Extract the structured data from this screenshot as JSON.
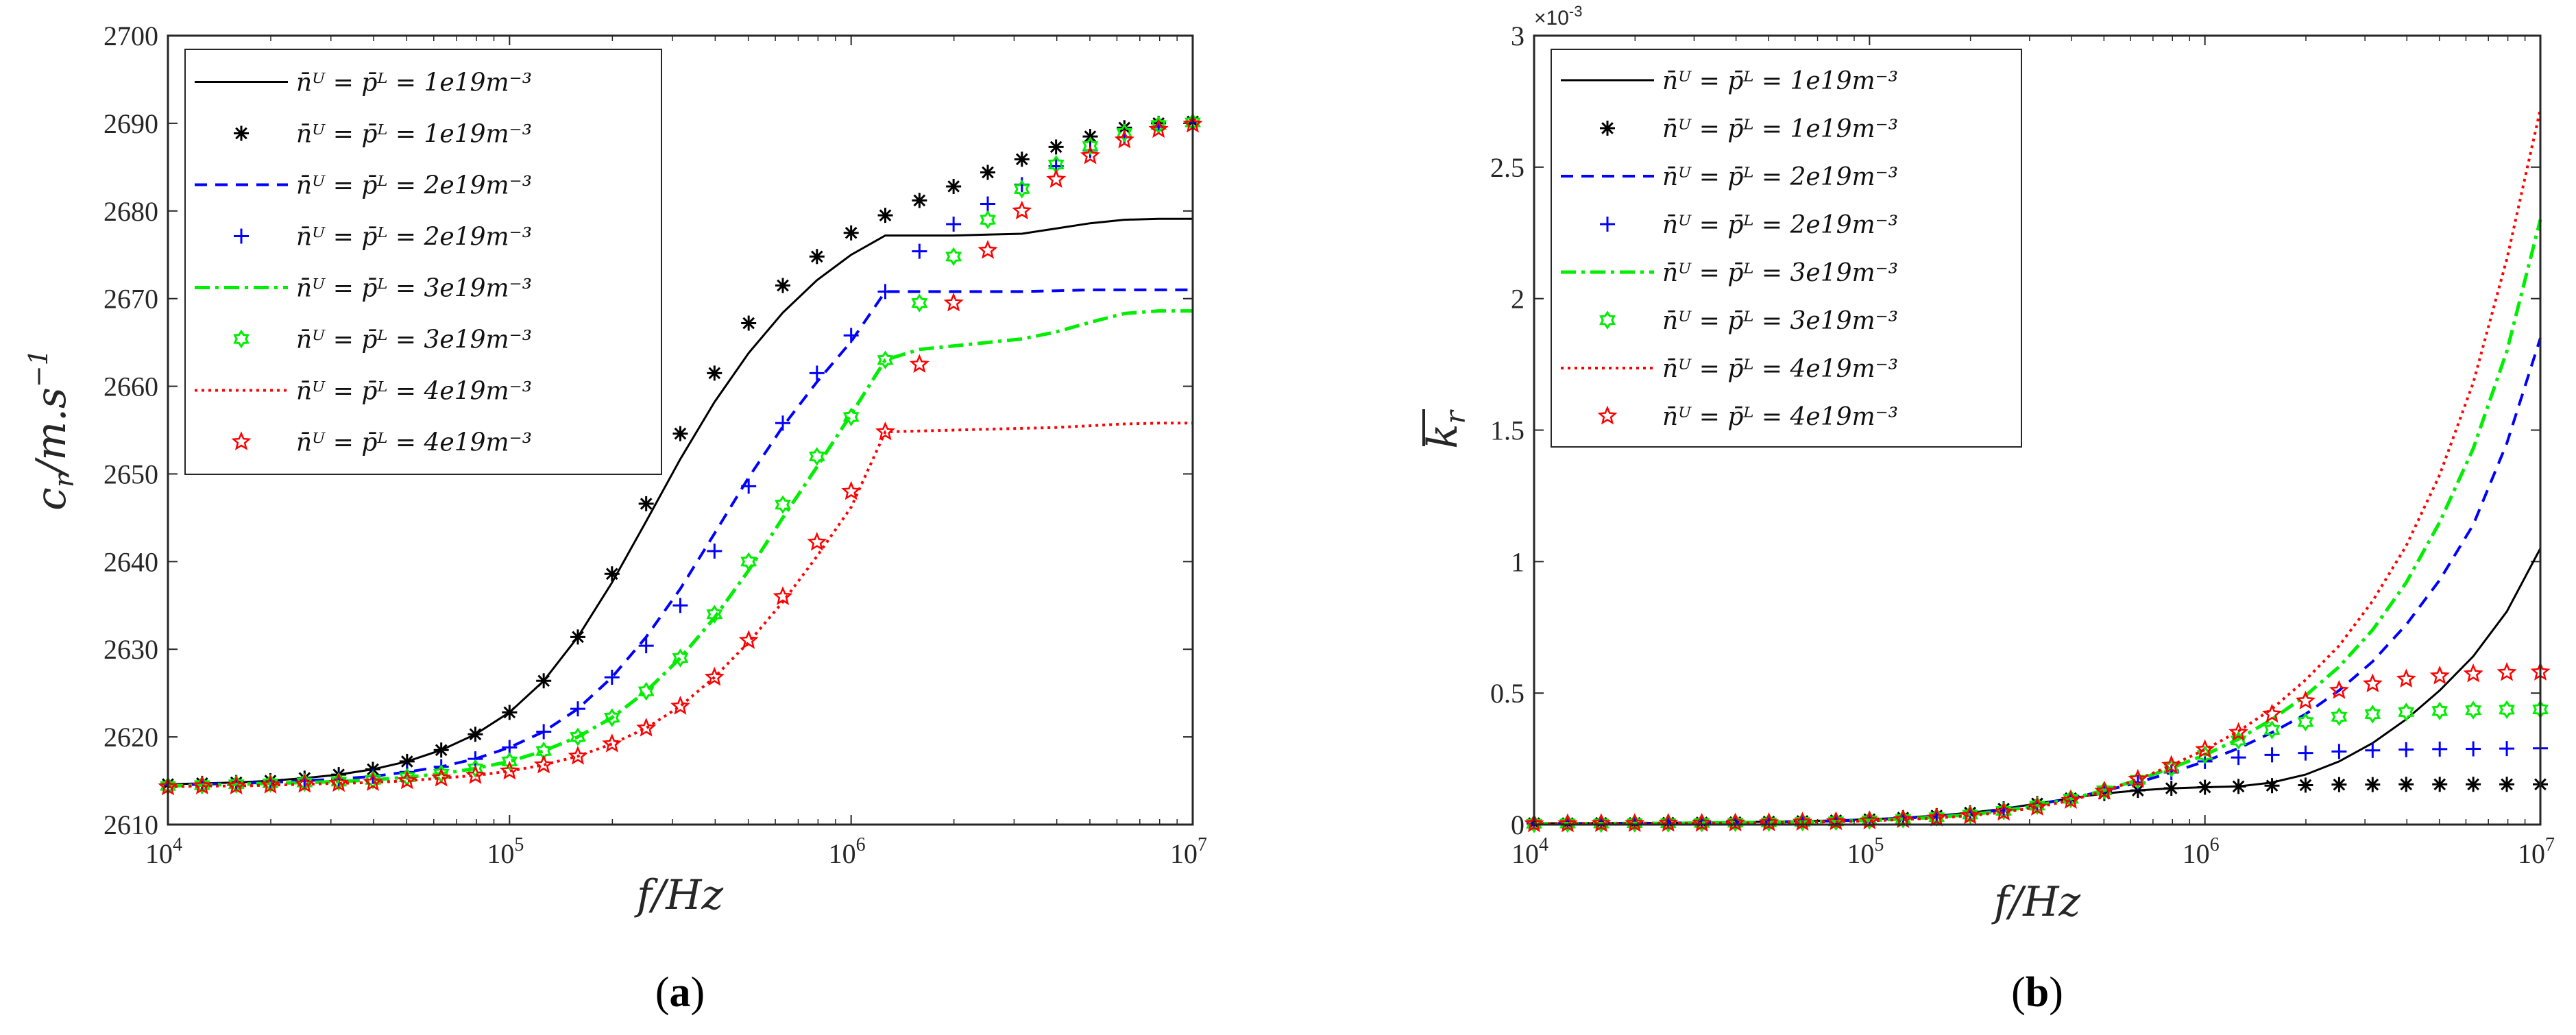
{
  "figure": {
    "panels": [
      "(a)",
      "(b)"
    ]
  },
  "legend_entries": [
    {
      "label": "n̄ᵁ = p̄ᴸ = 1e19m⁻³",
      "kind": "model",
      "series": 0
    },
    {
      "label": "n̄ᵁ = p̄ᴸ = 1e19m⁻³",
      "kind": "marker",
      "series": 0
    },
    {
      "label": "n̄ᵁ = p̄ᴸ = 2e19m⁻³",
      "kind": "model",
      "series": 1
    },
    {
      "label": "n̄ᵁ = p̄ᴸ = 2e19m⁻³",
      "kind": "marker",
      "series": 1
    },
    {
      "label": "n̄ᵁ = p̄ᴸ = 3e19m⁻³",
      "kind": "model",
      "series": 2
    },
    {
      "label": "n̄ᵁ = p̄ᴸ = 3e19m⁻³",
      "kind": "marker",
      "series": 2
    },
    {
      "label": "n̄ᵁ = p̄ᴸ = 4e19m⁻³",
      "kind": "model",
      "series": 3
    },
    {
      "label": "n̄ᵁ = p̄ᴸ = 4e19m⁻³",
      "kind": "marker",
      "series": 3
    }
  ],
  "series_style": [
    {
      "color": "#000000",
      "dash": "",
      "marker": "asterisk",
      "width": 3
    },
    {
      "color": "#0000ff",
      "dash": "18,12",
      "marker": "plus",
      "width": 4
    },
    {
      "color": "#00ee00",
      "dash": "22,8,5,8",
      "marker": "hexagram",
      "width": 5
    },
    {
      "color": "#ff0000",
      "dash": "4,6",
      "marker": "pentagram",
      "width": 4
    }
  ],
  "chart_data": [
    {
      "type": "line",
      "panel": "(a)",
      "xscale": "log",
      "xlim": [
        10000,
        10000000
      ],
      "ylim": [
        2610,
        2700
      ],
      "xlabel": "f/Hz",
      "ylabel": "c_r/m.s⁻¹",
      "xticks": [
        {
          "value": 10000,
          "base": "10",
          "exp": "4"
        },
        {
          "value": 100000,
          "base": "10",
          "exp": "5"
        },
        {
          "value": 1000000,
          "base": "10",
          "exp": "6"
        },
        {
          "value": 10000000,
          "base": "10",
          "exp": "7"
        }
      ],
      "yticks": [
        "2610",
        "2620",
        "2630",
        "2640",
        "2650",
        "2660",
        "2670",
        "2680",
        "2690",
        "2700"
      ],
      "legend_position": "top-left",
      "x": [
        10000,
        12590,
        15850,
        19950,
        25120,
        31620,
        39810,
        50120,
        63100,
        79430,
        100000,
        125900,
        158500,
        199500,
        251200,
        316200,
        398100,
        501200,
        631000,
        794300,
        1000000,
        1259000,
        1585000,
        1995000,
        2512000,
        3162000,
        3981000,
        5012000,
        6310000,
        7943000,
        10000000
      ],
      "series": [
        {
          "name": "n̄ᵁ = p̄ᴸ = 1e19m⁻³",
          "kind": "model",
          "values": [
            2614.6,
            2614.7,
            2614.8,
            2615.0,
            2615.3,
            2615.7,
            2616.3,
            2617.2,
            2618.5,
            2620.3,
            2622.8,
            2626.4,
            2631.4,
            2637.6,
            2644.6,
            2651.7,
            2658.2,
            2663.8,
            2668.4,
            2672.1,
            2675.0,
            2677.2,
            2677.2,
            2677.2,
            2677.3,
            2677.4,
            2678.0,
            2678.6,
            2679.0,
            2679.1,
            2679.1
          ]
        },
        {
          "name": "n̄ᵁ = p̄ᴸ = 1e19m⁻³",
          "kind": "marker",
          "values": [
            2614.6,
            2614.7,
            2614.8,
            2615.0,
            2615.3,
            2615.7,
            2616.3,
            2617.2,
            2618.5,
            2620.3,
            2622.8,
            2626.4,
            2631.4,
            2638.6,
            2646.6,
            2654.6,
            2661.5,
            2667.2,
            2671.5,
            2674.8,
            2677.5,
            2679.5,
            2681.2,
            2682.8,
            2684.4,
            2685.9,
            2687.3,
            2688.5,
            2689.5,
            2690.0,
            2690.2
          ]
        },
        {
          "name": "n̄ᵁ = p̄ᴸ = 2e19m⁻³",
          "kind": "model",
          "values": [
            2614.5,
            2614.6,
            2614.7,
            2614.8,
            2615.0,
            2615.2,
            2615.5,
            2616.0,
            2616.6,
            2617.5,
            2618.8,
            2620.6,
            2623.2,
            2626.8,
            2631.4,
            2636.9,
            2643.2,
            2649.6,
            2655.4,
            2660.5,
            2665.1,
            2670.8,
            2670.8,
            2670.8,
            2670.8,
            2670.8,
            2670.9,
            2671.0,
            2671.0,
            2671.0,
            2671.0
          ]
        },
        {
          "name": "n̄ᵁ = p̄ᴸ = 2e19m⁻³",
          "kind": "marker",
          "values": [
            2614.5,
            2614.6,
            2614.7,
            2614.8,
            2615.0,
            2615.2,
            2615.5,
            2616.0,
            2616.6,
            2617.5,
            2618.8,
            2620.6,
            2623.2,
            2626.8,
            2630.4,
            2635.0,
            2641.2,
            2648.6,
            2655.8,
            2661.5,
            2665.8,
            2670.8,
            2675.4,
            2678.5,
            2680.8,
            2683.0,
            2685.1,
            2686.9,
            2688.4,
            2689.6,
            2690.1
          ]
        },
        {
          "name": "n̄ᵁ = p̄ᴸ = 3e19m⁻³",
          "kind": "model",
          "values": [
            2614.4,
            2614.5,
            2614.6,
            2614.7,
            2614.8,
            2614.9,
            2615.1,
            2615.4,
            2615.8,
            2616.4,
            2617.2,
            2618.4,
            2620.0,
            2622.2,
            2625.2,
            2629.0,
            2633.6,
            2639.0,
            2645.0,
            2650.8,
            2656.8,
            2663.0,
            2664.2,
            2664.6,
            2665.0,
            2665.4,
            2666.2,
            2667.3,
            2668.3,
            2668.6,
            2668.6
          ]
        },
        {
          "name": "n̄ᵁ = p̄ᴸ = 3e19m⁻³",
          "kind": "marker",
          "values": [
            2614.4,
            2614.5,
            2614.6,
            2614.7,
            2614.8,
            2614.9,
            2615.1,
            2615.4,
            2615.8,
            2616.4,
            2617.2,
            2618.4,
            2620.0,
            2622.2,
            2625.2,
            2629.0,
            2634.0,
            2640.0,
            2646.5,
            2652.0,
            2656.5,
            2663.0,
            2669.5,
            2674.8,
            2679.0,
            2682.5,
            2685.3,
            2687.4,
            2688.9,
            2689.8,
            2690.1
          ]
        },
        {
          "name": "n̄ᵁ = p̄ᴸ = 4e19m⁻³",
          "kind": "model",
          "values": [
            2614.3,
            2614.4,
            2614.4,
            2614.5,
            2614.6,
            2614.7,
            2614.8,
            2615.0,
            2615.3,
            2615.6,
            2616.1,
            2616.8,
            2617.8,
            2619.2,
            2621.0,
            2623.5,
            2626.8,
            2630.8,
            2635.4,
            2640.6,
            2646.2,
            2654.8,
            2654.9,
            2655.0,
            2655.1,
            2655.2,
            2655.3,
            2655.5,
            2655.7,
            2655.8,
            2655.8
          ]
        },
        {
          "name": "n̄ᵁ = p̄ᴸ = 4e19m⁻³",
          "kind": "marker",
          "values": [
            2614.3,
            2614.4,
            2614.4,
            2614.5,
            2614.6,
            2614.7,
            2614.8,
            2615.0,
            2615.3,
            2615.6,
            2616.1,
            2616.8,
            2617.8,
            2619.2,
            2621.0,
            2623.5,
            2626.8,
            2631.0,
            2636.0,
            2642.2,
            2648.0,
            2654.8,
            2662.5,
            2669.5,
            2675.5,
            2680.0,
            2683.6,
            2686.3,
            2688.1,
            2689.3,
            2689.9
          ]
        }
      ]
    },
    {
      "type": "line",
      "panel": "(b)",
      "xscale": "log",
      "xlim": [
        10000,
        10000000
      ],
      "ylim": [
        0,
        3
      ],
      "y_multiplier": "×10⁻³",
      "xlabel": "f/Hz",
      "ylabel": "k̄_r",
      "xticks": [
        {
          "value": 10000,
          "base": "10",
          "exp": "4"
        },
        {
          "value": 100000,
          "base": "10",
          "exp": "5"
        },
        {
          "value": 1000000,
          "base": "10",
          "exp": "6"
        },
        {
          "value": 10000000,
          "base": "10",
          "exp": "7"
        }
      ],
      "yticks": [
        "0",
        "0.5",
        "1",
        "1.5",
        "2",
        "2.5",
        "3"
      ],
      "legend_position": "top-left",
      "x": [
        10000,
        12590,
        15850,
        19950,
        25120,
        31620,
        39810,
        50120,
        63100,
        79430,
        100000,
        125900,
        158500,
        199500,
        251200,
        316200,
        398100,
        501200,
        631000,
        794300,
        1000000,
        1259000,
        1585000,
        1995000,
        2512000,
        3162000,
        3981000,
        5012000,
        6310000,
        7943000,
        10000000
      ],
      "series": [
        {
          "name": "n̄ᵁ = p̄ᴸ = 1e19m⁻³",
          "kind": "model",
          "values": [
            0.005,
            0.005,
            0.006,
            0.006,
            0.007,
            0.008,
            0.009,
            0.011,
            0.013,
            0.016,
            0.02,
            0.026,
            0.034,
            0.045,
            0.06,
            0.08,
            0.1,
            0.118,
            0.13,
            0.138,
            0.142,
            0.145,
            0.16,
            0.19,
            0.24,
            0.31,
            0.4,
            0.51,
            0.64,
            0.81,
            1.05
          ]
        },
        {
          "name": "n̄ᵁ = p̄ᴸ = 1e19m⁻³",
          "kind": "marker",
          "values": [
            0.005,
            0.005,
            0.006,
            0.006,
            0.007,
            0.008,
            0.009,
            0.011,
            0.013,
            0.016,
            0.02,
            0.026,
            0.034,
            0.045,
            0.06,
            0.08,
            0.1,
            0.118,
            0.13,
            0.138,
            0.142,
            0.145,
            0.148,
            0.15,
            0.152,
            0.152,
            0.153,
            0.153,
            0.153,
            0.153,
            0.153
          ]
        },
        {
          "name": "n̄ᵁ = p̄ᴸ = 2e19m⁻³",
          "kind": "model",
          "values": [
            0.004,
            0.004,
            0.005,
            0.005,
            0.006,
            0.007,
            0.008,
            0.009,
            0.011,
            0.014,
            0.018,
            0.024,
            0.031,
            0.042,
            0.056,
            0.076,
            0.1,
            0.128,
            0.16,
            0.198,
            0.24,
            0.29,
            0.35,
            0.42,
            0.51,
            0.62,
            0.76,
            0.93,
            1.14,
            1.45,
            1.85
          ]
        },
        {
          "name": "n̄ᵁ = p̄ᴸ = 2e19m⁻³",
          "kind": "marker",
          "values": [
            0.004,
            0.004,
            0.005,
            0.005,
            0.006,
            0.007,
            0.008,
            0.009,
            0.011,
            0.014,
            0.018,
            0.024,
            0.031,
            0.042,
            0.056,
            0.076,
            0.1,
            0.128,
            0.16,
            0.198,
            0.24,
            0.255,
            0.265,
            0.272,
            0.278,
            0.282,
            0.285,
            0.287,
            0.288,
            0.289,
            0.29
          ]
        },
        {
          "name": "n̄ᵁ = p̄ᴸ = 3e19m⁻³",
          "kind": "model",
          "values": [
            0.003,
            0.004,
            0.004,
            0.005,
            0.005,
            0.006,
            0.007,
            0.008,
            0.01,
            0.012,
            0.016,
            0.021,
            0.028,
            0.038,
            0.052,
            0.072,
            0.098,
            0.13,
            0.17,
            0.215,
            0.265,
            0.325,
            0.4,
            0.49,
            0.6,
            0.74,
            0.92,
            1.15,
            1.43,
            1.8,
            2.3
          ]
        },
        {
          "name": "n̄ᵁ = p̄ᴸ = 3e19m⁻³",
          "kind": "marker",
          "values": [
            0.003,
            0.004,
            0.004,
            0.005,
            0.005,
            0.006,
            0.007,
            0.008,
            0.01,
            0.012,
            0.016,
            0.021,
            0.028,
            0.038,
            0.052,
            0.072,
            0.098,
            0.13,
            0.17,
            0.215,
            0.265,
            0.32,
            0.36,
            0.39,
            0.41,
            0.42,
            0.428,
            0.432,
            0.435,
            0.437,
            0.438
          ]
        },
        {
          "name": "n̄ᵁ = p̄ᴸ = 4e19m⁻³",
          "kind": "model",
          "values": [
            0.003,
            0.003,
            0.004,
            0.004,
            0.005,
            0.005,
            0.006,
            0.007,
            0.009,
            0.011,
            0.014,
            0.019,
            0.025,
            0.034,
            0.047,
            0.066,
            0.092,
            0.127,
            0.172,
            0.225,
            0.285,
            0.355,
            0.44,
            0.55,
            0.68,
            0.85,
            1.06,
            1.33,
            1.68,
            2.15,
            2.72
          ]
        },
        {
          "name": "n̄ᵁ = p̄ᴸ = 4e19m⁻³",
          "kind": "marker",
          "values": [
            0.003,
            0.003,
            0.004,
            0.004,
            0.005,
            0.005,
            0.006,
            0.007,
            0.009,
            0.011,
            0.014,
            0.019,
            0.025,
            0.034,
            0.047,
            0.066,
            0.092,
            0.127,
            0.172,
            0.225,
            0.285,
            0.35,
            0.42,
            0.47,
            0.51,
            0.535,
            0.553,
            0.565,
            0.573,
            0.578,
            0.58
          ]
        }
      ]
    }
  ]
}
